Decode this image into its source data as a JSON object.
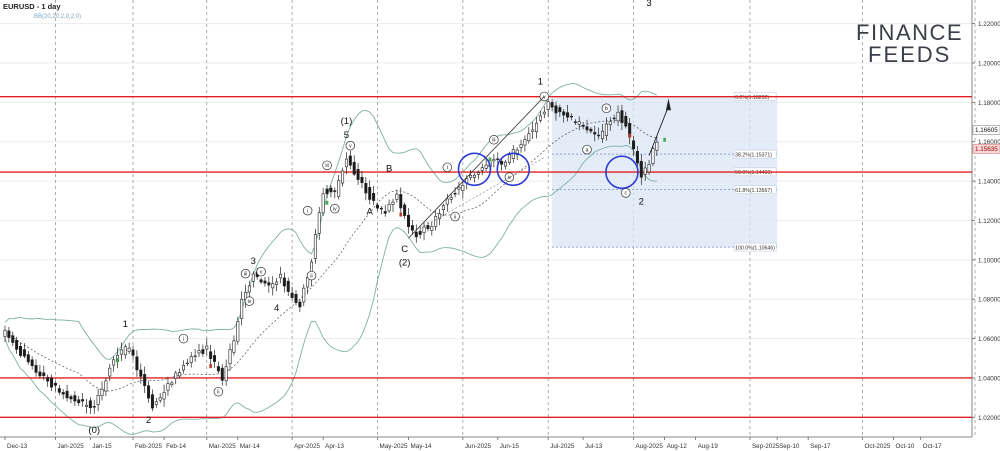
{
  "header": {
    "symbol": "EURUSD - 1 day",
    "indicator": "BB(20,20,2,0,2,0)"
  },
  "logo": {
    "line1": "FINANCE",
    "line2": "FEEDS"
  },
  "chart_data": {
    "type": "candlestick",
    "ylim": [
      1.01,
      1.232
    ],
    "y_ticks": [
      1.02,
      1.04,
      1.06,
      1.08,
      1.1,
      1.12,
      1.14,
      1.16,
      1.18,
      1.2,
      1.22
    ],
    "y_tick_labels": [
      "1.02000",
      "1.04000",
      "1.06000",
      "1.08000",
      "1.10000",
      "1.12000",
      "1.14000",
      "1.16000",
      "1.18000",
      "1.20000",
      "1.22000"
    ],
    "price_tags": [
      {
        "value": 1.16605,
        "label": "1.16605",
        "style": "outline"
      },
      {
        "value": 1.15635,
        "label": "1.15635",
        "style": "highlight"
      }
    ],
    "x_ticks": [
      {
        "i": 0,
        "label": "Dec-13"
      },
      {
        "i": 13,
        "label": "Jan-2025"
      },
      {
        "i": 22,
        "label": "Jan-15"
      },
      {
        "i": 33,
        "label": "Feb-2025"
      },
      {
        "i": 41,
        "label": "Feb-14"
      },
      {
        "i": 52,
        "label": "Mar-2025"
      },
      {
        "i": 60,
        "label": "Mar-14"
      },
      {
        "i": 74,
        "label": "Apr-2025"
      },
      {
        "i": 82,
        "label": "Apr-13"
      },
      {
        "i": 96,
        "label": "May-2025"
      },
      {
        "i": 104,
        "label": "May-14"
      },
      {
        "i": 118,
        "label": "Jun-2025"
      },
      {
        "i": 127,
        "label": "Jun-15"
      },
      {
        "i": 140,
        "label": "Jul-2025"
      },
      {
        "i": 149,
        "label": "Jul-13"
      },
      {
        "i": 162,
        "label": "Aug-2025"
      },
      {
        "i": 170,
        "label": "Aug-12"
      },
      {
        "i": 178,
        "label": "Aug-19"
      },
      {
        "i": 192,
        "label": "Sep-2025"
      },
      {
        "i": 199,
        "label": "Sep-10"
      },
      {
        "i": 207,
        "label": "Sep-17"
      },
      {
        "i": 221,
        "label": "Oct-2025"
      },
      {
        "i": 229,
        "label": "Oct-10"
      },
      {
        "i": 236,
        "label": "Oct-17"
      }
    ],
    "grid_x": [
      13,
      33,
      52,
      74,
      96,
      118,
      140,
      162,
      192,
      221,
      250
    ],
    "support_resistance": [
      1.1829,
      1.1446,
      1.04,
      1.02
    ],
    "fib_box": {
      "i_start": 141,
      "i_end": 199,
      "top": 1.18292,
      "bottom": 1.10646
    },
    "fib_levels": [
      {
        "value": 1.18292,
        "label": "0.0%(1.18292)"
      },
      {
        "value": 1.15371,
        "label": "38.2%(1.15371)"
      },
      {
        "value": 1.14469,
        "label": "50.0%(1.14469)"
      },
      {
        "value": 1.13567,
        "label": "61.8%(1.13567)"
      },
      {
        "value": 1.10646,
        "label": "100.0%(1.10646)"
      }
    ],
    "key_points": [
      {
        "i": 0,
        "v": 1.063
      },
      {
        "i": 7,
        "v": 1.045
      },
      {
        "i": 10,
        "v": 1.04
      },
      {
        "i": 16,
        "v": 1.03
      },
      {
        "i": 23,
        "v": 1.025
      },
      {
        "i": 28,
        "v": 1.05
      },
      {
        "i": 32,
        "v": 1.056
      },
      {
        "i": 36,
        "v": 1.035
      },
      {
        "i": 38,
        "v": 1.025
      },
      {
        "i": 42,
        "v": 1.036
      },
      {
        "i": 47,
        "v": 1.049
      },
      {
        "i": 52,
        "v": 1.055
      },
      {
        "i": 56,
        "v": 1.039
      },
      {
        "i": 59,
        "v": 1.06
      },
      {
        "i": 61,
        "v": 1.08
      },
      {
        "i": 64,
        "v": 1.092
      },
      {
        "i": 68,
        "v": 1.086
      },
      {
        "i": 71,
        "v": 1.092
      },
      {
        "i": 73,
        "v": 1.083
      },
      {
        "i": 76,
        "v": 1.077
      },
      {
        "i": 79,
        "v": 1.1
      },
      {
        "i": 82,
        "v": 1.135
      },
      {
        "i": 85,
        "v": 1.134
      },
      {
        "i": 88,
        "v": 1.152
      },
      {
        "i": 91,
        "v": 1.141
      },
      {
        "i": 95,
        "v": 1.129
      },
      {
        "i": 98,
        "v": 1.125
      },
      {
        "i": 101,
        "v": 1.132
      },
      {
        "i": 104,
        "v": 1.118
      },
      {
        "i": 106,
        "v": 1.113
      },
      {
        "i": 110,
        "v": 1.118
      },
      {
        "i": 114,
        "v": 1.13
      },
      {
        "i": 117,
        "v": 1.137
      },
      {
        "i": 120,
        "v": 1.142
      },
      {
        "i": 123,
        "v": 1.146
      },
      {
        "i": 126,
        "v": 1.152
      },
      {
        "i": 128,
        "v": 1.149
      },
      {
        "i": 131,
        "v": 1.155
      },
      {
        "i": 134,
        "v": 1.16
      },
      {
        "i": 137,
        "v": 1.17
      },
      {
        "i": 140,
        "v": 1.179
      },
      {
        "i": 142,
        "v": 1.176
      },
      {
        "i": 145,
        "v": 1.172
      },
      {
        "i": 148,
        "v": 1.17
      },
      {
        "i": 151,
        "v": 1.165
      },
      {
        "i": 153,
        "v": 1.162
      },
      {
        "i": 156,
        "v": 1.171
      },
      {
        "i": 158,
        "v": 1.174
      },
      {
        "i": 160,
        "v": 1.168
      },
      {
        "i": 162,
        "v": 1.156
      },
      {
        "i": 164,
        "v": 1.143
      },
      {
        "i": 166,
        "v": 1.149
      },
      {
        "i": 168,
        "v": 1.161
      }
    ],
    "annotations": [
      {
        "text": "(0)",
        "i": 23,
        "v": 1.012
      },
      {
        "text": "1",
        "i": 31,
        "v": 1.066
      },
      {
        "text": "2",
        "i": 37,
        "v": 1.017
      },
      {
        "text": "3",
        "i": 64,
        "v": 1.098
      },
      {
        "text": "4",
        "i": 70,
        "v": 1.074
      },
      {
        "text": "(1)",
        "i": 88,
        "v": 1.169
      },
      {
        "text": "5",
        "i": 88,
        "v": 1.162
      },
      {
        "text": "A",
        "i": 94,
        "v": 1.123
      },
      {
        "text": "B",
        "i": 99,
        "v": 1.145
      },
      {
        "text": "C",
        "i": 103,
        "v": 1.104
      },
      {
        "text": "(2)",
        "i": 103,
        "v": 1.097
      },
      {
        "text": "1",
        "i": 138,
        "v": 1.189
      },
      {
        "text": "2",
        "i": 164,
        "v": 1.128
      },
      {
        "text": "3",
        "i": 166,
        "v": 1.229
      }
    ],
    "wave_labels": [
      {
        "text": "ii",
        "i": 55,
        "v": 1.033
      },
      {
        "text": "i",
        "i": 46,
        "v": 1.06
      },
      {
        "text": "iii",
        "i": 62,
        "v": 1.093
      },
      {
        "text": "iv",
        "i": 63,
        "v": 1.079
      },
      {
        "text": "v",
        "i": 66,
        "v": 1.094
      },
      {
        "text": "i",
        "i": 78,
        "v": 1.125
      },
      {
        "text": "ii",
        "i": 79,
        "v": 1.092
      },
      {
        "text": "iii",
        "i": 83,
        "v": 1.148
      },
      {
        "text": "iv",
        "i": 85,
        "v": 1.126
      },
      {
        "text": "v",
        "i": 89,
        "v": 1.158
      },
      {
        "text": "i",
        "i": 114,
        "v": 1.147
      },
      {
        "text": "ii",
        "i": 116,
        "v": 1.122
      },
      {
        "text": "iii",
        "i": 126,
        "v": 1.161
      },
      {
        "text": "iv",
        "i": 130,
        "v": 1.142
      },
      {
        "text": "v",
        "i": 139,
        "v": 1.183
      },
      {
        "text": "a",
        "i": 150,
        "v": 1.156
      },
      {
        "text": "b",
        "i": 155,
        "v": 1.177
      },
      {
        "text": "c",
        "i": 160,
        "v": 1.134
      }
    ],
    "circles": [
      {
        "i": 121,
        "v": 1.146
      },
      {
        "i": 131,
        "v": 1.146
      },
      {
        "i": 159,
        "v": 1.1445
      }
    ]
  }
}
